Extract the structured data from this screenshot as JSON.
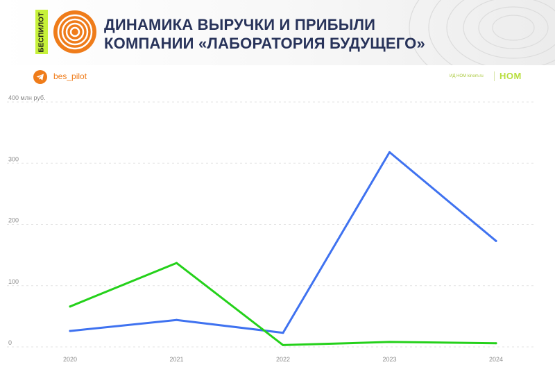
{
  "header": {
    "brand_label": "БЕСПИЛОТ",
    "title_line1": "ДИНАМИКА ВЫРУЧКИ И ПРИБЫЛИ",
    "title_line2": "КОМПАНИИ «ЛАБОРАТОРИЯ БУДУЩЕГО»",
    "logo_icon": "concentric-circles-logo"
  },
  "subbar": {
    "handle": "bes_pilot",
    "handle_icon": "telegram-icon",
    "source": "ИД НОМ kinom.ru",
    "source_logo": "НОМ"
  },
  "colors": {
    "brand_green": "#c6f13a",
    "brand_orange": "#ef7c1a",
    "title": "#28335a",
    "series_blue": "#3f72f0",
    "series_green": "#24d11a"
  },
  "chart_data": {
    "type": "line",
    "x": [
      "2020",
      "2021",
      "2022",
      "2023",
      "2024"
    ],
    "ylabel": "400 млн руб.",
    "ylim": [
      0,
      400
    ],
    "yticks": [
      {
        "value": 0,
        "label": "0"
      },
      {
        "value": 100,
        "label": "100"
      },
      {
        "value": 200,
        "label": "200"
      },
      {
        "value": 300,
        "label": "300"
      },
      {
        "value": 400,
        "label": "400 млн руб."
      }
    ],
    "grid": true,
    "series": [
      {
        "values": [
          26,
          44,
          23,
          318,
          173
        ],
        "color": "#3f72f0"
      },
      {
        "values": [
          66,
          137,
          3,
          8,
          6
        ],
        "color": "#24d11a"
      }
    ]
  }
}
